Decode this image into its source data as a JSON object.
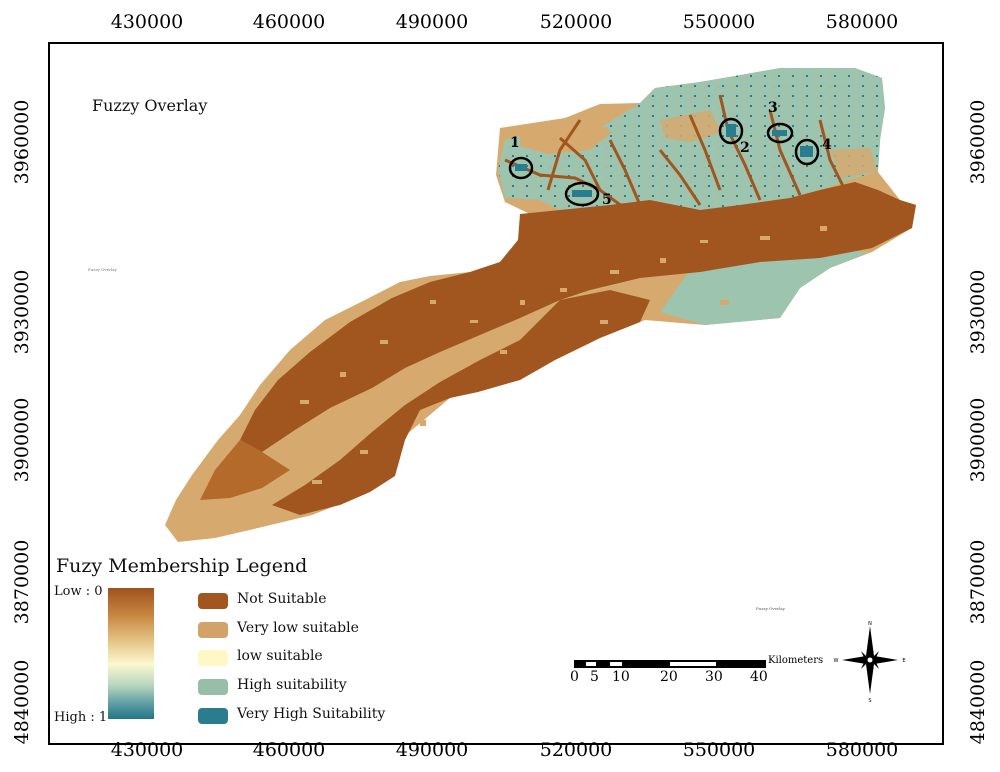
{
  "map": {
    "title": "Fuzzy Overlay",
    "x_ticks": [
      "430000",
      "460000",
      "490000",
      "520000",
      "550000",
      "580000"
    ],
    "y_ticks": [
      "3960000",
      "3930000",
      "3900000",
      "3870000",
      "4840000"
    ],
    "colors": {
      "not_suitable": "#a0561e",
      "very_low": "#d6aa6e",
      "low": "#fdfac9",
      "high": "#9cc4ae",
      "very_high": "#2a7d8e"
    }
  },
  "sites": [
    {
      "label": "1"
    },
    {
      "label": "2"
    },
    {
      "label": "3"
    },
    {
      "label": "4"
    },
    {
      "label": "5"
    }
  ],
  "legend": {
    "title": "Fuzy Membership Legend",
    "ramp_low": "Low : 0",
    "ramp_high": "High : 1",
    "items": [
      {
        "label": "Not Suitable",
        "color": "#a0561e"
      },
      {
        "label": "Very low suitable",
        "color": "#d1a36a"
      },
      {
        "label": "low suitable",
        "color": "#fdf8c6"
      },
      {
        "label": "High suitability",
        "color": "#97bea8"
      },
      {
        "label": "Very High Suitability",
        "color": "#2a7d8e"
      }
    ]
  },
  "scale_bar": {
    "unit": "Kilometers",
    "labels": [
      "0",
      "5",
      "10",
      "20",
      "30",
      "40"
    ]
  },
  "north_arrow": {
    "icon": "compass-rose-icon"
  },
  "artifacts": {
    "tiny_text": "Fuzzy Overlay"
  }
}
